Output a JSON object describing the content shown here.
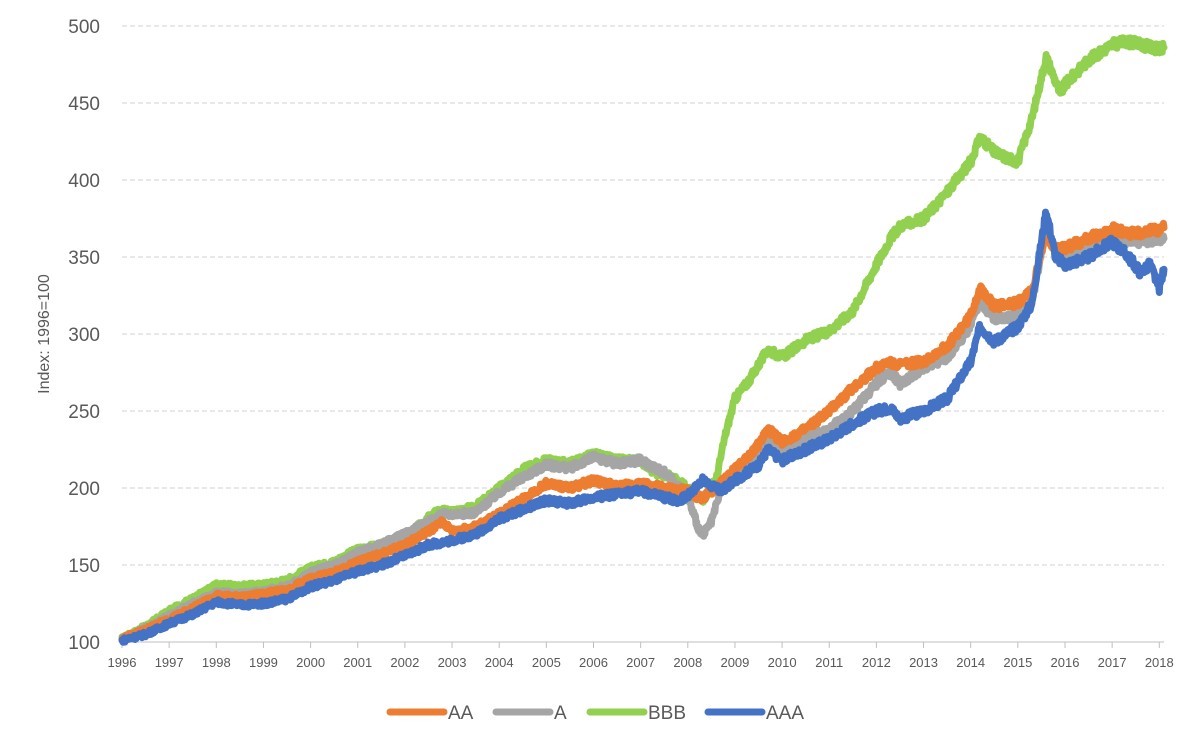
{
  "chart_data": {
    "type": "line",
    "title": "",
    "xlabel": "",
    "ylabel": "Index: 1996=100",
    "ylim": [
      100,
      500
    ],
    "yticks": [
      "100",
      "150",
      "200",
      "250",
      "300",
      "350",
      "400",
      "450",
      "500"
    ],
    "xticks": [
      "1996",
      "1997",
      "1998",
      "1999",
      "2000",
      "2001",
      "2002",
      "2003",
      "2004",
      "2005",
      "2006",
      "2007",
      "2008",
      "2009",
      "2010",
      "2011",
      "2012",
      "2013",
      "2014",
      "2015",
      "2016",
      "2017",
      "2018"
    ],
    "xlim": [
      1996.0,
      2018.1
    ],
    "grid": true,
    "legend_position": "bottom",
    "series": [
      {
        "name": "AA",
        "color": "#ED7D31",
        "x": [
          1996.0,
          1996.5,
          1997.0,
          1997.5,
          1998.0,
          1998.5,
          1999.0,
          1999.5,
          2000.0,
          2000.5,
          2001.0,
          2001.5,
          2002.0,
          2002.5,
          2002.8,
          2003.0,
          2003.5,
          2004.0,
          2004.5,
          2005.0,
          2005.5,
          2006.0,
          2006.5,
          2007.0,
          2007.5,
          2008.0,
          2008.3,
          2008.6,
          2009.0,
          2009.5,
          2009.7,
          2010.0,
          2010.5,
          2011.0,
          2011.5,
          2012.0,
          2012.3,
          2012.5,
          2013.0,
          2013.5,
          2014.0,
          2014.2,
          2014.5,
          2015.0,
          2015.3,
          2015.6,
          2015.8,
          2016.0,
          2016.5,
          2017.0,
          2017.5,
          2018.0,
          2018.1
        ],
        "values": [
          102,
          108,
          115,
          122,
          130,
          129,
          131,
          134,
          141,
          145,
          152,
          157,
          163,
          172,
          178,
          172,
          175,
          183,
          193,
          203,
          200,
          205,
          201,
          203,
          200,
          198,
          193,
          200,
          212,
          228,
          238,
          230,
          238,
          250,
          265,
          278,
          282,
          280,
          282,
          292,
          312,
          330,
          318,
          320,
          328,
          365,
          355,
          356,
          362,
          368,
          365,
          368,
          369
        ]
      },
      {
        "name": "A",
        "color": "#A5A5A5",
        "x": [
          1996.0,
          1996.5,
          1997.0,
          1997.5,
          1998.0,
          1998.5,
          1999.0,
          1999.5,
          2000.0,
          2000.5,
          2001.0,
          2001.5,
          2002.0,
          2002.5,
          2002.8,
          2003.0,
          2003.5,
          2004.0,
          2004.5,
          2005.0,
          2005.5,
          2006.0,
          2006.5,
          2007.0,
          2007.5,
          2008.0,
          2008.1,
          2008.3,
          2008.5,
          2008.7,
          2009.0,
          2009.5,
          2009.7,
          2010.0,
          2010.5,
          2011.0,
          2011.5,
          2012.0,
          2012.3,
          2012.5,
          2013.0,
          2013.5,
          2014.0,
          2014.2,
          2014.5,
          2015.0,
          2015.3,
          2015.6,
          2015.8,
          2016.0,
          2016.5,
          2017.0,
          2017.5,
          2018.0,
          2018.1
        ],
        "values": [
          102,
          109,
          117,
          125,
          132,
          131,
          133,
          136,
          145,
          150,
          158,
          163,
          170,
          178,
          183,
          183,
          184,
          197,
          207,
          215,
          213,
          220,
          216,
          218,
          210,
          195,
          185,
          168,
          178,
          198,
          210,
          220,
          232,
          225,
          232,
          238,
          250,
          268,
          275,
          268,
          278,
          285,
          305,
          322,
          310,
          312,
          320,
          370,
          352,
          353,
          358,
          362,
          360,
          362,
          362
        ]
      },
      {
        "name": "BBB",
        "color": "#92D050",
        "x": [
          1996.0,
          1996.5,
          1997.0,
          1997.5,
          1998.0,
          1998.5,
          1999.0,
          1999.5,
          2000.0,
          2000.5,
          2001.0,
          2001.5,
          2002.0,
          2002.5,
          2002.8,
          2003.0,
          2003.5,
          2004.0,
          2004.5,
          2005.0,
          2005.5,
          2006.0,
          2006.5,
          2007.0,
          2007.3,
          2007.6,
          2008.0,
          2008.3,
          2008.6,
          2008.8,
          2009.0,
          2009.3,
          2009.7,
          2010.0,
          2010.5,
          2011.0,
          2011.5,
          2012.0,
          2012.3,
          2012.5,
          2013.0,
          2013.5,
          2014.0,
          2014.2,
          2014.5,
          2014.8,
          2015.0,
          2015.3,
          2015.6,
          2015.9,
          2016.0,
          2016.5,
          2017.0,
          2017.3,
          2017.6,
          2018.0,
          2018.1
        ],
        "values": [
          102,
          110,
          120,
          128,
          137,
          136,
          137,
          140,
          148,
          152,
          160,
          163,
          166,
          182,
          186,
          184,
          188,
          200,
          212,
          218,
          216,
          222,
          218,
          218,
          210,
          208,
          200,
          192,
          205,
          235,
          258,
          270,
          290,
          285,
          296,
          302,
          315,
          345,
          362,
          370,
          375,
          392,
          412,
          428,
          418,
          414,
          412,
          440,
          480,
          456,
          462,
          478,
          488,
          490,
          488,
          485,
          486
        ]
      },
      {
        "name": "AAA",
        "color": "#4472C4",
        "x": [
          1996.0,
          1996.5,
          1997.0,
          1997.5,
          1998.0,
          1998.5,
          1999.0,
          1999.5,
          2000.0,
          2000.5,
          2001.0,
          2001.5,
          2002.0,
          2002.5,
          2003.0,
          2003.5,
          2004.0,
          2004.5,
          2005.0,
          2005.5,
          2006.0,
          2006.5,
          2007.0,
          2007.5,
          2007.8,
          2008.0,
          2008.3,
          2008.7,
          2009.0,
          2009.5,
          2009.7,
          2010.0,
          2010.5,
          2011.0,
          2011.5,
          2012.0,
          2012.3,
          2012.5,
          2013.0,
          2013.5,
          2014.0,
          2014.2,
          2014.5,
          2015.0,
          2015.3,
          2015.6,
          2015.8,
          2016.0,
          2016.5,
          2017.0,
          2017.3,
          2017.6,
          2017.8,
          2018.0,
          2018.1
        ],
        "values": [
          101,
          105,
          112,
          118,
          126,
          124,
          125,
          128,
          136,
          140,
          146,
          150,
          156,
          163,
          166,
          170,
          180,
          186,
          192,
          190,
          194,
          196,
          198,
          194,
          192,
          195,
          205,
          198,
          205,
          215,
          225,
          218,
          225,
          232,
          242,
          250,
          252,
          245,
          250,
          258,
          282,
          305,
          295,
          305,
          320,
          380,
          350,
          345,
          350,
          360,
          352,
          340,
          345,
          330,
          342
        ]
      }
    ]
  }
}
